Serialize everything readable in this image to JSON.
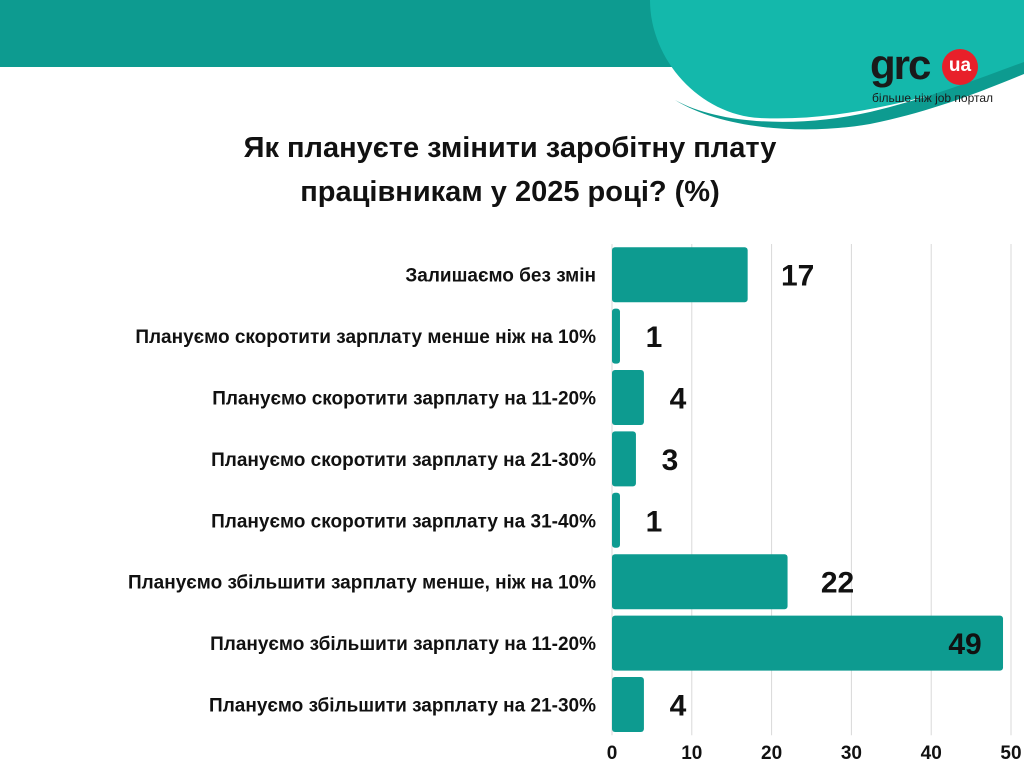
{
  "title_lines": [
    "Як плануєте змінити заробітну плату",
    "працівникам у 2025 році?  (%)"
  ],
  "logo": {
    "word": "grc",
    "badge": "ua",
    "tagline": "більше ніж job портал"
  },
  "colors": {
    "bar": "#0d9b90",
    "banner": "#0d9b90",
    "banner_light": "#14b8ab",
    "grid": "#d9d9d9"
  },
  "chart_data": {
    "type": "bar",
    "orientation": "horizontal",
    "categories": [
      "Залишаємо без змін",
      "Плануємо скоротити зарплату менше ніж на 10%",
      "Плануємо скоротити зарплату на 11-20%",
      "Плануємо скоротити зарплату на 21-30%",
      "Плануємо скоротити зарплату на 31-40%",
      "Плануємо збільшити зарплату менше, ніж на 10%",
      "Плануємо збільшити зарплату на 11-20%",
      "Плануємо збільшити зарплату на 21-30%"
    ],
    "values": [
      17,
      1,
      4,
      3,
      1,
      22,
      49,
      4
    ],
    "xlim": [
      0,
      50
    ],
    "xticks": [
      0,
      10,
      20,
      30,
      40,
      50
    ],
    "grid": true,
    "data_labels": true
  }
}
